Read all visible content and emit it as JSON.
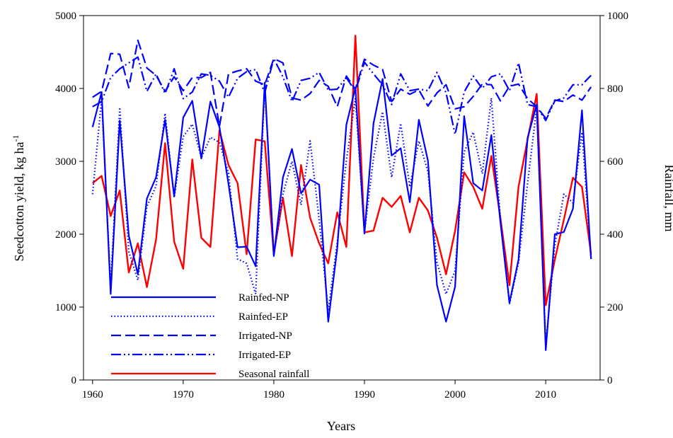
{
  "chart_data": {
    "type": "line",
    "xlabel": "Years",
    "ylabel_left": "Seedcotton yield, kg ha",
    "ylabel_left_superscript": "-1",
    "ylabel_right": "Rainfall, mm",
    "xlim": [
      1959,
      2016
    ],
    "ylim_left": [
      0,
      5000
    ],
    "ylim_right": [
      0,
      1000
    ],
    "x_ticks": [
      1960,
      1970,
      1980,
      1990,
      2000,
      2010
    ],
    "y_ticks_left": [
      0,
      1000,
      2000,
      3000,
      4000,
      5000
    ],
    "y_ticks_right": [
      0,
      200,
      400,
      600,
      800,
      1000
    ],
    "grid": false,
    "legend_position": "bottom-left",
    "x": [
      1960,
      1961,
      1962,
      1963,
      1964,
      1965,
      1966,
      1967,
      1968,
      1969,
      1970,
      1971,
      1972,
      1973,
      1974,
      1975,
      1976,
      1977,
      1978,
      1979,
      1980,
      1981,
      1982,
      1983,
      1984,
      1985,
      1986,
      1987,
      1988,
      1989,
      1990,
      1991,
      1992,
      1993,
      1994,
      1995,
      1996,
      1997,
      1998,
      1999,
      2000,
      2001,
      2002,
      2003,
      2004,
      2005,
      2006,
      2007,
      2008,
      2009,
      2010,
      2011,
      2012,
      2013,
      2014,
      2015
    ],
    "series": [
      {
        "name": "Rainfed-NP",
        "color": "#0000ff",
        "dash": "solid",
        "axis": "left",
        "values": [
          3470,
          3950,
          1180,
          3560,
          1980,
          1450,
          2490,
          2780,
          3570,
          2520,
          3600,
          3830,
          3040,
          3820,
          3470,
          2690,
          1820,
          1830,
          1560,
          4080,
          1700,
          2780,
          3170,
          2560,
          2750,
          2680,
          800,
          1810,
          3500,
          4010,
          2010,
          3520,
          4130,
          3080,
          3180,
          2440,
          3570,
          3010,
          1300,
          800,
          1280,
          3620,
          2700,
          2600,
          3360,
          2170,
          1060,
          1650,
          3320,
          3780,
          410,
          2000,
          2030,
          2350,
          3700,
          1660
        ]
      },
      {
        "name": "Rainfed-EP",
        "color": "#0000ff",
        "dash": "dotted",
        "axis": "left",
        "values": [
          2550,
          3860,
          1280,
          3740,
          1760,
          1370,
          2380,
          2660,
          3660,
          2500,
          3340,
          3510,
          3050,
          3330,
          3260,
          2840,
          1660,
          1600,
          1180,
          4050,
          1710,
          2550,
          3000,
          2400,
          3280,
          2200,
          950,
          1890,
          3010,
          3860,
          2020,
          3050,
          3680,
          2780,
          3520,
          2650,
          3280,
          2860,
          1610,
          1180,
          1500,
          3130,
          3400,
          2830,
          3870,
          2210,
          1040,
          1610,
          2700,
          3740,
          470,
          1850,
          2550,
          2430,
          3400,
          1660
        ]
      },
      {
        "name": "Irrigated-NP",
        "color": "#0000ff",
        "dash": "dashed",
        "axis": "left",
        "values": [
          3880,
          3960,
          4480,
          4470,
          4010,
          4660,
          4280,
          4180,
          3960,
          4160,
          3970,
          4150,
          4150,
          4220,
          3480,
          4200,
          4240,
          4270,
          4100,
          4050,
          4410,
          4350,
          3870,
          3840,
          3930,
          4110,
          4030,
          3750,
          4170,
          3990,
          4400,
          4320,
          4260,
          3820,
          3990,
          3920,
          3980,
          3760,
          3940,
          4050,
          3720,
          3750,
          3890,
          4060,
          4050,
          3830,
          4030,
          4060,
          3860,
          3750,
          3590,
          3840,
          3820,
          3910,
          3840,
          4020
        ]
      },
      {
        "name": "Irrigated-EP",
        "color": "#0000ff",
        "dash": "dashdot",
        "axis": "left",
        "values": [
          3750,
          3820,
          4150,
          4270,
          4350,
          4430,
          3960,
          4200,
          3930,
          4270,
          3860,
          3950,
          4200,
          4180,
          4100,
          3880,
          4140,
          4230,
          4260,
          3940,
          4410,
          4160,
          3820,
          4110,
          4140,
          4220,
          3980,
          3990,
          4150,
          3960,
          4360,
          4200,
          4050,
          3780,
          4200,
          3970,
          3990,
          3970,
          4220,
          3940,
          3370,
          3950,
          4170,
          4000,
          4160,
          4200,
          3970,
          4350,
          3780,
          3750,
          3560,
          3830,
          3870,
          4050,
          4050,
          4180
        ]
      },
      {
        "name": "Seasonal rainfall",
        "color": "#ff0000",
        "dash": "solid",
        "axis": "right",
        "values": [
          540,
          560,
          450,
          520,
          295,
          375,
          255,
          385,
          650,
          380,
          305,
          605,
          390,
          365,
          685,
          590,
          540,
          345,
          660,
          655,
          345,
          500,
          340,
          590,
          445,
          375,
          320,
          460,
          365,
          945,
          405,
          410,
          500,
          475,
          505,
          405,
          500,
          465,
          390,
          290,
          410,
          570,
          530,
          470,
          615,
          445,
          260,
          530,
          660,
          785,
          205,
          330,
          440,
          555,
          530,
          345
        ]
      }
    ]
  }
}
